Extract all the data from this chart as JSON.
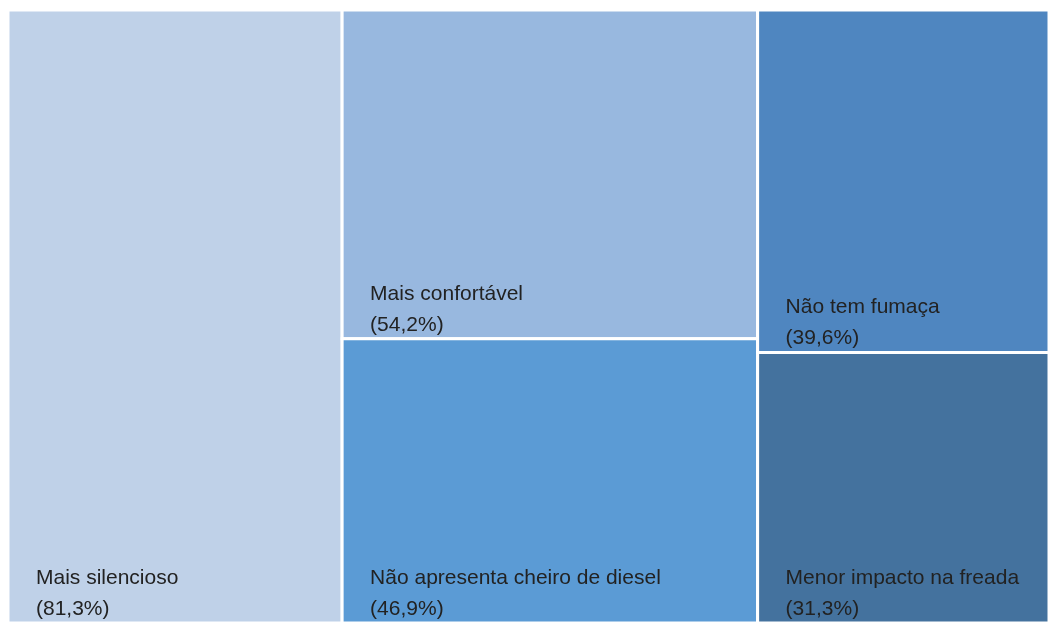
{
  "chart_data": {
    "type": "other",
    "categories": [
      "Mais silencioso",
      "Mais confortável",
      "Não apresenta cheiro de diesel",
      "Não tem fumaça",
      "Menor impacto na freada"
    ],
    "values": [
      81.3,
      54.2,
      46.9,
      39.6,
      31.3
    ],
    "value_labels": [
      "(81,3%)",
      "(54,2%)",
      "(46,9%)",
      "(39,6%)",
      "(31,3%)"
    ],
    "colors": [
      "#bfd1e8",
      "#98b8df",
      "#5b9bd5",
      "#4f86c0",
      "#44729e"
    ]
  }
}
